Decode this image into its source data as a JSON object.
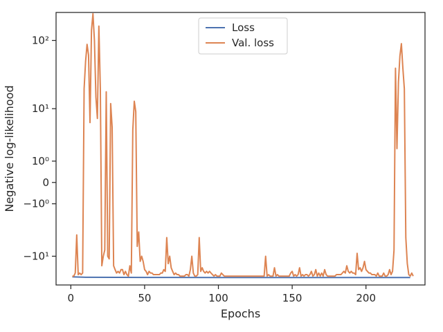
{
  "chart_data": {
    "type": "line",
    "title": "",
    "xlabel": "Epochs",
    "ylabel": "Negative log-likelihood",
    "yscale": "symlog",
    "xlim": [
      -10,
      240
    ],
    "ylim": [
      -27,
      250
    ],
    "x_ticks": [
      0,
      50,
      100,
      150,
      200
    ],
    "x_tick_labels": [
      "0",
      "50",
      "100",
      "150",
      "200"
    ],
    "y_ticks": [
      -10,
      -1,
      0,
      1,
      10,
      100
    ],
    "y_tick_labels": [
      "−10¹",
      "−10⁰",
      "0",
      "10⁰",
      "10¹",
      "10²"
    ],
    "grid": false,
    "legend_position": "top-center",
    "series": [
      {
        "name": "Loss",
        "color": "#4c72b0",
        "points": [
          [
            1,
            -20.5
          ],
          [
            10,
            -20.8
          ],
          [
            50,
            -20.9
          ],
          [
            100,
            -21.0
          ],
          [
            150,
            -21.0
          ],
          [
            200,
            -21.0
          ],
          [
            230,
            -21.0
          ]
        ]
      },
      {
        "name": "Val. loss",
        "color": "#dd8452",
        "points": [
          [
            1,
            -20
          ],
          [
            2,
            -20
          ],
          [
            3,
            -18
          ],
          [
            4,
            -4.5
          ],
          [
            5,
            -19
          ],
          [
            6,
            -18
          ],
          [
            7,
            -19
          ],
          [
            8,
            -18
          ],
          [
            9,
            20
          ],
          [
            10,
            50
          ],
          [
            11,
            88
          ],
          [
            12,
            62
          ],
          [
            13,
            6
          ],
          [
            14,
            140
          ],
          [
            15,
            240
          ],
          [
            16,
            100
          ],
          [
            17,
            15
          ],
          [
            18,
            7
          ],
          [
            19,
            160
          ],
          [
            20,
            20
          ],
          [
            21,
            -14
          ],
          [
            22,
            -10
          ],
          [
            23,
            -8
          ],
          [
            24,
            18
          ],
          [
            25,
            -10
          ],
          [
            26,
            -11
          ],
          [
            27,
            12
          ],
          [
            28,
            5
          ],
          [
            29,
            -14
          ],
          [
            30,
            -16
          ],
          [
            31,
            -18
          ],
          [
            32,
            -17
          ],
          [
            33,
            -18
          ],
          [
            34,
            -16
          ],
          [
            35,
            -16
          ],
          [
            36,
            -19
          ],
          [
            37,
            -17
          ],
          [
            38,
            -19
          ],
          [
            39,
            -20
          ],
          [
            40,
            -14
          ],
          [
            41,
            -18
          ],
          [
            42,
            4.5
          ],
          [
            43,
            13
          ],
          [
            44,
            9
          ],
          [
            45,
            -7
          ],
          [
            46,
            -4
          ],
          [
            47,
            -12
          ],
          [
            48,
            -10
          ],
          [
            49,
            -12
          ],
          [
            50,
            -16
          ],
          [
            51,
            -17
          ],
          [
            52,
            -19
          ],
          [
            53,
            -17
          ],
          [
            54,
            -18
          ],
          [
            55,
            -18
          ],
          [
            56,
            -19
          ],
          [
            57,
            -19
          ],
          [
            58,
            -19
          ],
          [
            59,
            -19
          ],
          [
            60,
            -19
          ],
          [
            61,
            -18
          ],
          [
            62,
            -18
          ],
          [
            63,
            -16
          ],
          [
            64,
            -17
          ],
          [
            65,
            -5
          ],
          [
            66,
            -13
          ],
          [
            67,
            -10
          ],
          [
            68,
            -15
          ],
          [
            69,
            -17
          ],
          [
            70,
            -19
          ],
          [
            71,
            -18
          ],
          [
            72,
            -19
          ],
          [
            73,
            -19
          ],
          [
            74,
            -20
          ],
          [
            75,
            -20
          ],
          [
            76,
            -20
          ],
          [
            77,
            -20
          ],
          [
            78,
            -19
          ],
          [
            79,
            -19
          ],
          [
            80,
            -20
          ],
          [
            81,
            -16
          ],
          [
            82,
            -10
          ],
          [
            83,
            -18
          ],
          [
            84,
            -20
          ],
          [
            85,
            -20
          ],
          [
            86,
            -19
          ],
          [
            87,
            -5
          ],
          [
            88,
            -17
          ],
          [
            89,
            -15
          ],
          [
            90,
            -17
          ],
          [
            91,
            -18
          ],
          [
            92,
            -17
          ],
          [
            93,
            -18
          ],
          [
            94,
            -17
          ],
          [
            95,
            -18
          ],
          [
            96,
            -19
          ],
          [
            97,
            -20
          ],
          [
            98,
            -19
          ],
          [
            99,
            -20
          ],
          [
            100,
            -20
          ],
          [
            101,
            -20
          ],
          [
            102,
            -18
          ],
          [
            103,
            -19
          ],
          [
            104,
            -20
          ],
          [
            105,
            -20
          ],
          [
            106,
            -20
          ],
          [
            107,
            -20
          ],
          [
            108,
            -20
          ],
          [
            109,
            -20
          ],
          [
            110,
            -20
          ],
          [
            111,
            -20
          ],
          [
            112,
            -20
          ],
          [
            113,
            -20
          ],
          [
            114,
            -20
          ],
          [
            115,
            -20
          ],
          [
            116,
            -20
          ],
          [
            117,
            -20
          ],
          [
            118,
            -20
          ],
          [
            119,
            -20
          ],
          [
            120,
            -20
          ],
          [
            121,
            -20
          ],
          [
            122,
            -20
          ],
          [
            123,
            -20
          ],
          [
            124,
            -20
          ],
          [
            125,
            -20
          ],
          [
            126,
            -20
          ],
          [
            127,
            -20
          ],
          [
            128,
            -20
          ],
          [
            129,
            -20
          ],
          [
            130,
            -20
          ],
          [
            131,
            -20
          ],
          [
            132,
            -10
          ],
          [
            133,
            -20
          ],
          [
            134,
            -19
          ],
          [
            135,
            -20
          ],
          [
            136,
            -20
          ],
          [
            137,
            -20
          ],
          [
            138,
            -15
          ],
          [
            139,
            -20
          ],
          [
            140,
            -19
          ],
          [
            141,
            -20
          ],
          [
            142,
            -20
          ],
          [
            143,
            -20
          ],
          [
            144,
            -20
          ],
          [
            145,
            -20
          ],
          [
            146,
            -20
          ],
          [
            147,
            -20
          ],
          [
            148,
            -20
          ],
          [
            149,
            -18
          ],
          [
            150,
            -17
          ],
          [
            151,
            -20
          ],
          [
            152,
            -19
          ],
          [
            153,
            -20
          ],
          [
            154,
            -19
          ],
          [
            155,
            -15
          ],
          [
            156,
            -20
          ],
          [
            157,
            -19
          ],
          [
            158,
            -20
          ],
          [
            159,
            -19
          ],
          [
            160,
            -19
          ],
          [
            161,
            -20
          ],
          [
            162,
            -19
          ],
          [
            163,
            -17
          ],
          [
            164,
            -20
          ],
          [
            165,
            -19
          ],
          [
            166,
            -16
          ],
          [
            167,
            -20
          ],
          [
            168,
            -18
          ],
          [
            169,
            -20
          ],
          [
            170,
            -18
          ],
          [
            171,
            -20
          ],
          [
            172,
            -16
          ],
          [
            173,
            -19
          ],
          [
            174,
            -20
          ],
          [
            175,
            -20
          ],
          [
            176,
            -20
          ],
          [
            177,
            -20
          ],
          [
            178,
            -20
          ],
          [
            179,
            -20
          ],
          [
            180,
            -19
          ],
          [
            181,
            -19
          ],
          [
            182,
            -19
          ],
          [
            183,
            -19
          ],
          [
            184,
            -18
          ],
          [
            185,
            -17
          ],
          [
            186,
            -18
          ],
          [
            187,
            -14
          ],
          [
            188,
            -17
          ],
          [
            189,
            -18
          ],
          [
            190,
            -17
          ],
          [
            191,
            -18
          ],
          [
            192,
            -18
          ],
          [
            193,
            -19
          ],
          [
            194,
            -9
          ],
          [
            195,
            -16
          ],
          [
            196,
            -15
          ],
          [
            197,
            -17
          ],
          [
            198,
            -15
          ],
          [
            199,
            -12
          ],
          [
            200,
            -16
          ],
          [
            201,
            -17
          ],
          [
            202,
            -18
          ],
          [
            203,
            -18
          ],
          [
            204,
            -19
          ],
          [
            205,
            -19
          ],
          [
            206,
            -19
          ],
          [
            207,
            -20
          ],
          [
            208,
            -18
          ],
          [
            209,
            -20
          ],
          [
            210,
            -20
          ],
          [
            211,
            -20
          ],
          [
            212,
            -18
          ],
          [
            213,
            -20
          ],
          [
            214,
            -20
          ],
          [
            215,
            -19
          ],
          [
            216,
            -16
          ],
          [
            217,
            -19
          ],
          [
            218,
            -17
          ],
          [
            219,
            -8
          ],
          [
            220,
            40
          ],
          [
            221,
            2
          ],
          [
            222,
            25
          ],
          [
            223,
            60
          ],
          [
            224,
            90
          ],
          [
            225,
            40
          ],
          [
            226,
            20
          ],
          [
            227,
            -5
          ],
          [
            228,
            -13
          ],
          [
            229,
            -19
          ],
          [
            230,
            -20
          ],
          [
            231,
            -18
          ],
          [
            232,
            -20
          ]
        ]
      }
    ]
  }
}
